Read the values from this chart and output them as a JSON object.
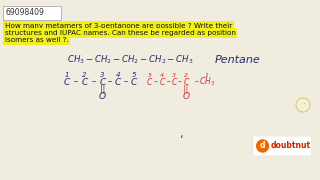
{
  "background_color": "#f0ece0",
  "id_text": "69098409",
  "question_lines": [
    "How many metamers of 3-pentanone are possible ? Write their",
    "structures and IUPAC names. Can these be regarded as position",
    "isomers as well ?."
  ],
  "highlight_color": "#f0f020",
  "dark_blue": "#2a2a6a",
  "red_color": "#cc3333",
  "q_fontsize": 5.2,
  "id_fontsize": 5.5
}
